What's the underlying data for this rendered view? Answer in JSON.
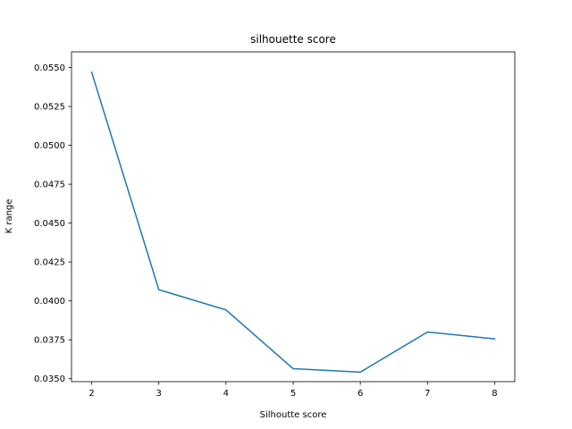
{
  "chart_data": {
    "type": "line",
    "title": "silhouette score",
    "xlabel": "Silhoutte score",
    "ylabel": "K range",
    "x": [
      2,
      3,
      4,
      5,
      6,
      7,
      8
    ],
    "series": [
      {
        "values": [
          0.0547,
          0.04072,
          0.03942,
          0.03564,
          0.03542,
          0.038,
          0.03756
        ],
        "color": "#1f77b4"
      }
    ],
    "xticks": [
      "2",
      "3",
      "4",
      "5",
      "6",
      "7",
      "8"
    ],
    "yticks": [
      "0.0350",
      "0.0375",
      "0.0400",
      "0.0425",
      "0.0450",
      "0.0475",
      "0.0500",
      "0.0525",
      "0.0550"
    ],
    "xlim": [
      1.7,
      8.3
    ],
    "ylim": [
      0.03481,
      0.05601
    ],
    "grid": false
  }
}
